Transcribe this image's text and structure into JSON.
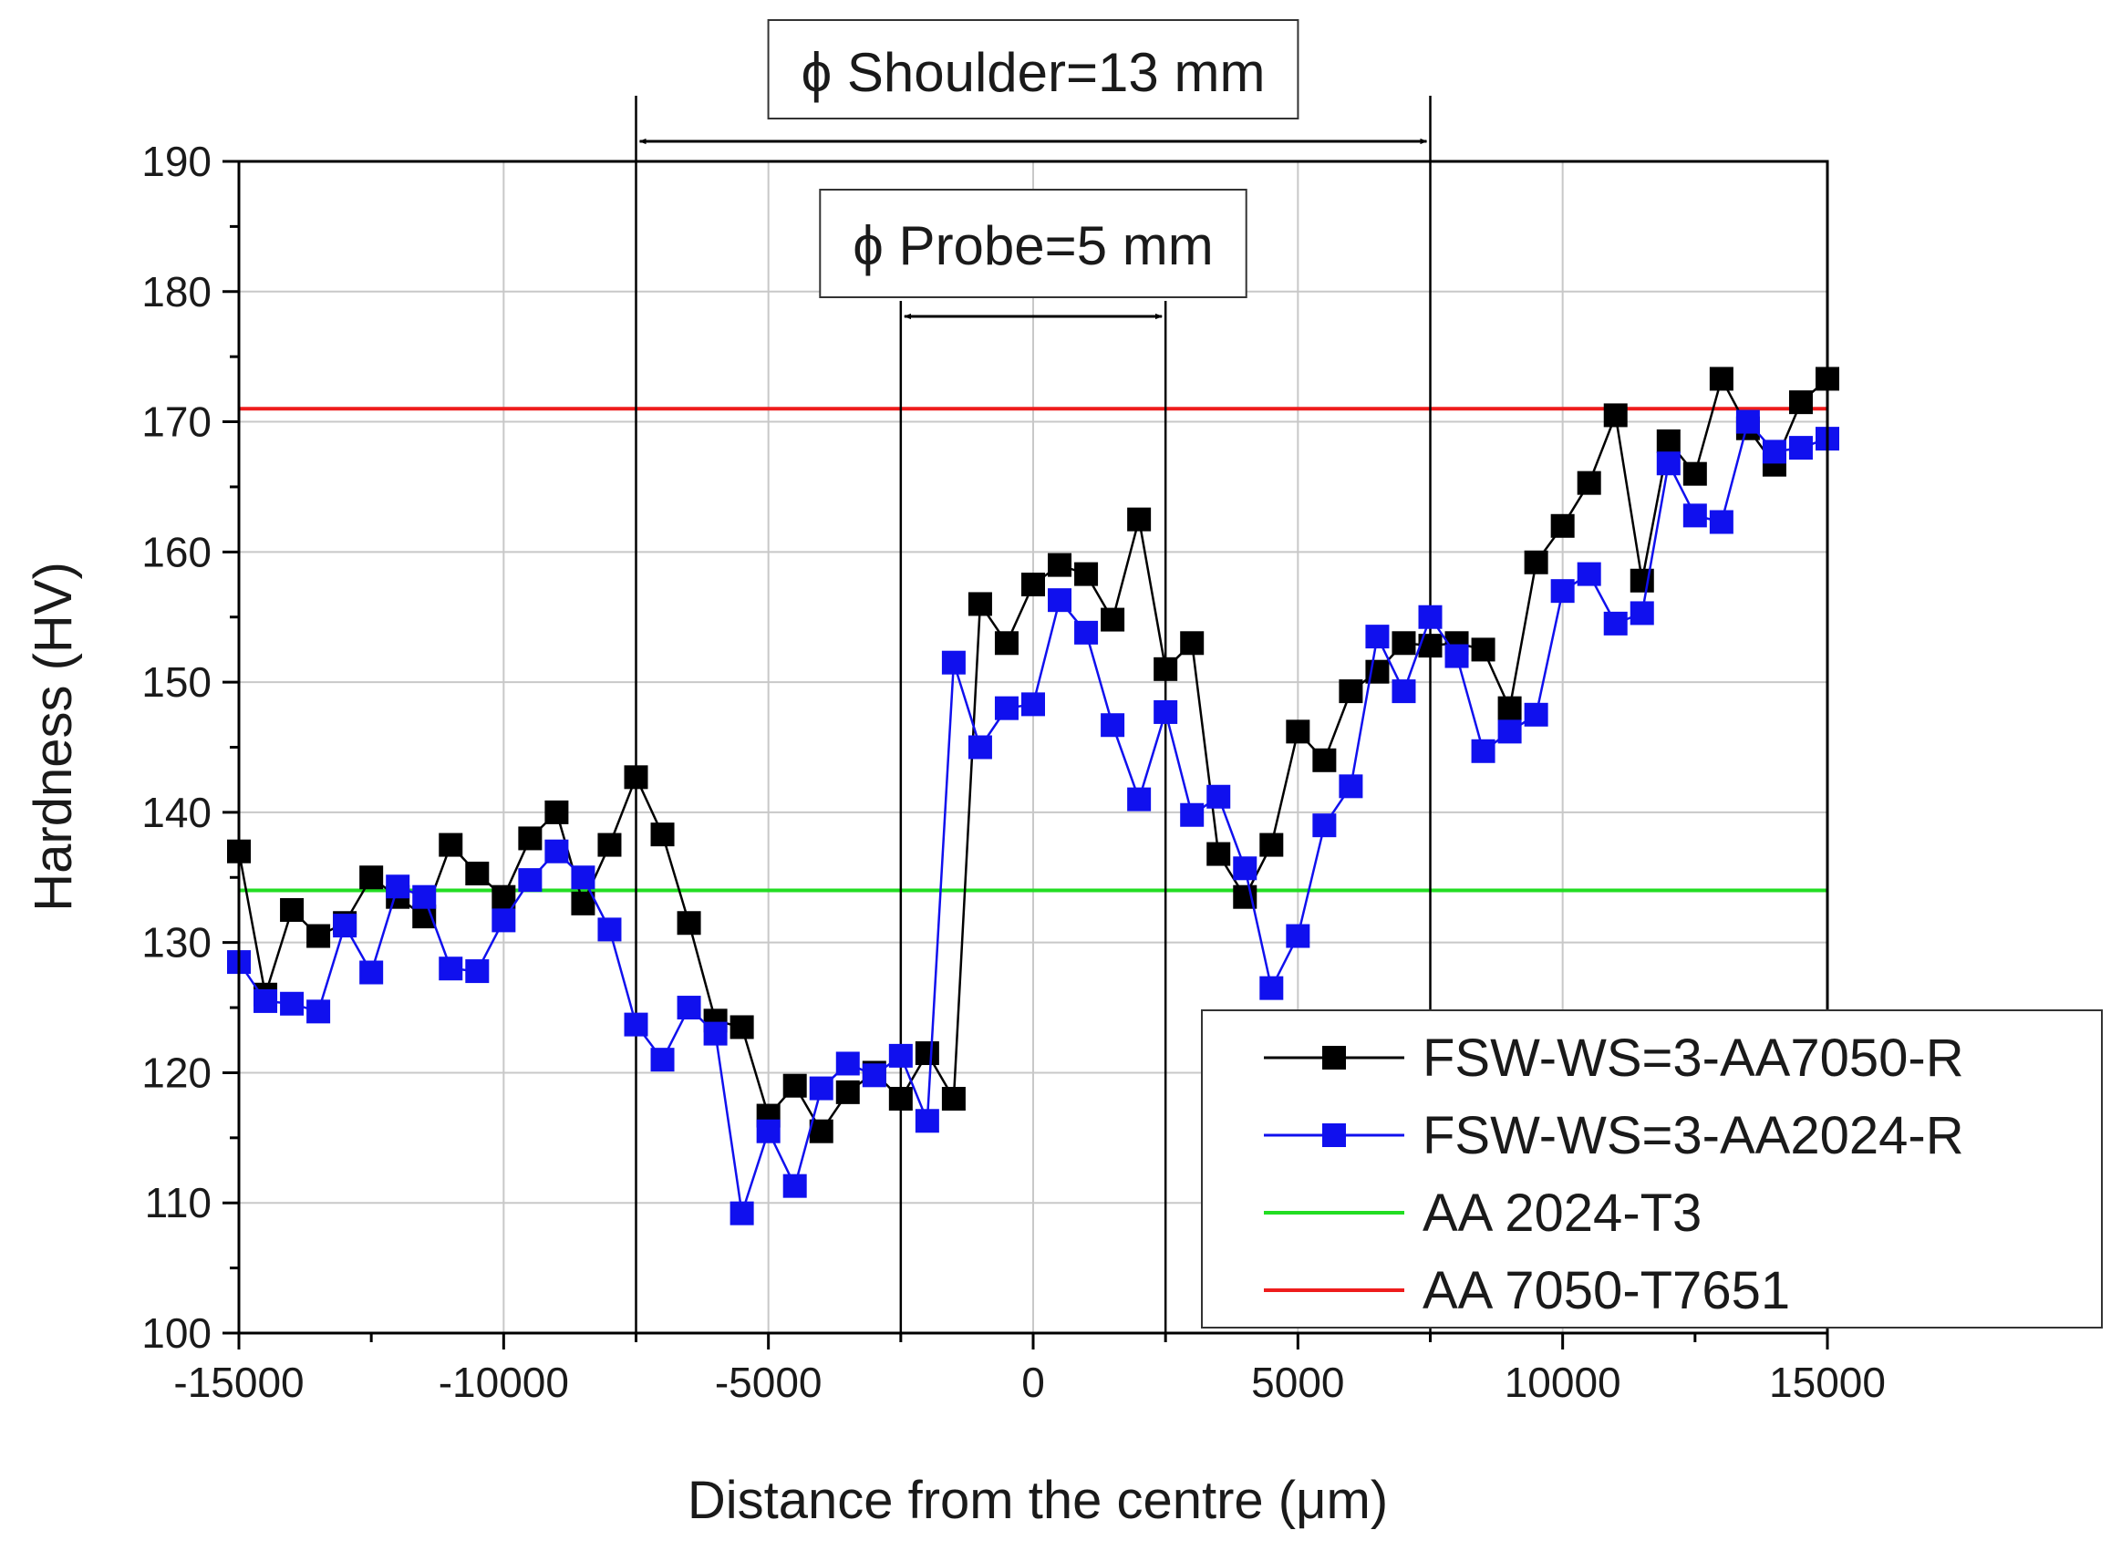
{
  "chart_data": {
    "type": "line",
    "xlabel": "Distance from the centre (μm)",
    "ylabel": "Hardness (HV)",
    "xlim": [
      -15000,
      15000
    ],
    "ylim": [
      100,
      190
    ],
    "xticks": [
      -15000,
      -10000,
      -5000,
      0,
      5000,
      10000,
      15000
    ],
    "yticks": [
      100,
      110,
      120,
      130,
      140,
      150,
      160,
      170,
      180,
      190
    ],
    "grid": true,
    "legend_position": "bottom-right",
    "series": [
      {
        "name": "FSW-WS=3-AA7050-R",
        "color": "#000000",
        "marker": "square",
        "x": [
          -15000,
          -14500,
          -14000,
          -13500,
          -13000,
          -12500,
          -12000,
          -11500,
          -11000,
          -10500,
          -10000,
          -9500,
          -9000,
          -8500,
          -8000,
          -7500,
          -7000,
          -6500,
          -6000,
          -5500,
          -5000,
          -4500,
          -4000,
          -3500,
          -3000,
          -2500,
          -2000,
          -1500,
          -1000,
          -500,
          0,
          500,
          1000,
          1500,
          2000,
          2500,
          3000,
          3500,
          4000,
          4500,
          5000,
          5500,
          6000,
          6500,
          7000,
          7500,
          8000,
          8500,
          9000,
          9500,
          10000,
          10500,
          11000,
          11500,
          12000,
          12500,
          13000,
          13500,
          14000,
          14500,
          15000
        ],
        "y": [
          137,
          126,
          132.5,
          130.5,
          131.5,
          135,
          133.5,
          132,
          137.5,
          135.3,
          133.5,
          138,
          140,
          133,
          137.5,
          142.7,
          138.3,
          131.5,
          124,
          123.5,
          116.7,
          119,
          115.5,
          118.5,
          120,
          118,
          121.5,
          118,
          156,
          153,
          157.5,
          159,
          158.3,
          154.8,
          162.5,
          151,
          153,
          136.8,
          133.5,
          137.5,
          146.2,
          144,
          149.3,
          150.8,
          153,
          152.8,
          153,
          152.5,
          148,
          159.2,
          162,
          165.3,
          170.5,
          157.8,
          168.5,
          166,
          173.3,
          169.5,
          166.7,
          171.5,
          173.3
        ]
      },
      {
        "name": "FSW-WS=3-AA2024-R",
        "color": "#1010ee",
        "marker": "square",
        "x": [
          -15000,
          -14500,
          -14000,
          -13500,
          -13000,
          -12500,
          -12000,
          -11500,
          -11000,
          -10500,
          -10000,
          -9500,
          -9000,
          -8500,
          -8000,
          -7500,
          -7000,
          -6500,
          -6000,
          -5500,
          -5000,
          -4500,
          -4000,
          -3500,
          -3000,
          -2500,
          -2000,
          -1500,
          -1000,
          -500,
          0,
          500,
          1000,
          1500,
          2000,
          2500,
          3000,
          3500,
          4000,
          4500,
          5000,
          5500,
          6000,
          6500,
          7000,
          7500,
          8000,
          8500,
          9000,
          9500,
          10000,
          10500,
          11000,
          11500,
          12000,
          12500,
          13000,
          13500,
          14000,
          14500,
          15000
        ],
        "y": [
          128.5,
          125.5,
          125.3,
          124.7,
          131.3,
          127.7,
          134.3,
          133.5,
          128,
          127.8,
          131.7,
          134.8,
          137,
          135,
          131,
          123.7,
          121,
          125,
          123,
          109.2,
          115.5,
          111.3,
          118.8,
          120.7,
          119.8,
          121.3,
          116.3,
          151.5,
          145,
          148,
          148.3,
          156.3,
          153.8,
          146.7,
          141,
          147.7,
          139.8,
          141.2,
          135.7,
          126.5,
          130.5,
          139,
          142,
          153.5,
          149.3,
          155,
          152,
          144.7,
          146.2,
          147.5,
          157,
          158.3,
          154.5,
          155.3,
          166.8,
          162.8,
          162.3,
          170,
          167.7,
          168,
          168.7
        ]
      }
    ],
    "reference_lines": [
      {
        "name": "AA 2024-T3",
        "color": "#22dd22",
        "y": 134
      },
      {
        "name": "AA 7050-T7651",
        "color": "#ee1c1c",
        "y": 171
      }
    ],
    "annotations": [
      {
        "text": "ϕ Shoulder=13 mm",
        "x_range": [
          -7500,
          7500
        ]
      },
      {
        "text": "ϕ Probe=5 mm",
        "x_range": [
          -2500,
          2500
        ]
      }
    ]
  }
}
